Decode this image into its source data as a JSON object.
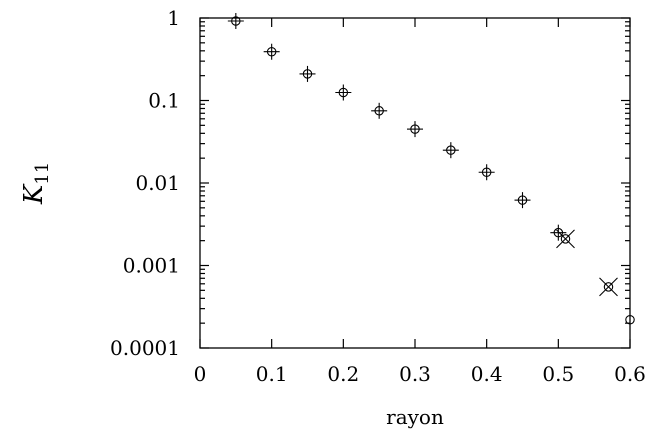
{
  "chart_data": {
    "type": "scatter",
    "title": "",
    "xlabel": "rayon",
    "ylabel": {
      "main": "K",
      "sub": "11"
    },
    "xlim": [
      0,
      0.6
    ],
    "ylim": [
      0.0001,
      1
    ],
    "yscale": "log",
    "grid": false,
    "x_ticks": [
      0,
      0.1,
      0.2,
      0.3,
      0.4,
      0.5,
      0.6
    ],
    "x_tick_labels": [
      "0",
      "0.1",
      "0.2",
      "0.3",
      "0.4",
      "0.5",
      "0.6"
    ],
    "y_ticks": [
      1,
      0.1,
      0.01,
      0.001,
      0.0001
    ],
    "y_tick_labels": [
      "1",
      "0.1",
      "0.01",
      "0.001",
      "0.0001"
    ],
    "series": [
      {
        "marker": "circle-plus",
        "x": [
          0.05,
          0.1,
          0.15,
          0.2,
          0.25,
          0.3,
          0.35,
          0.4,
          0.45,
          0.5
        ],
        "y": [
          0.92,
          0.39,
          0.21,
          0.125,
          0.075,
          0.045,
          0.025,
          0.0135,
          0.0062,
          0.0025
        ]
      },
      {
        "marker": "circle-x",
        "x": [
          0.51,
          0.57
        ],
        "y": [
          0.0021,
          0.00055
        ]
      },
      {
        "marker": "circle",
        "x": [
          0.6
        ],
        "y": [
          0.00022
        ]
      }
    ]
  }
}
